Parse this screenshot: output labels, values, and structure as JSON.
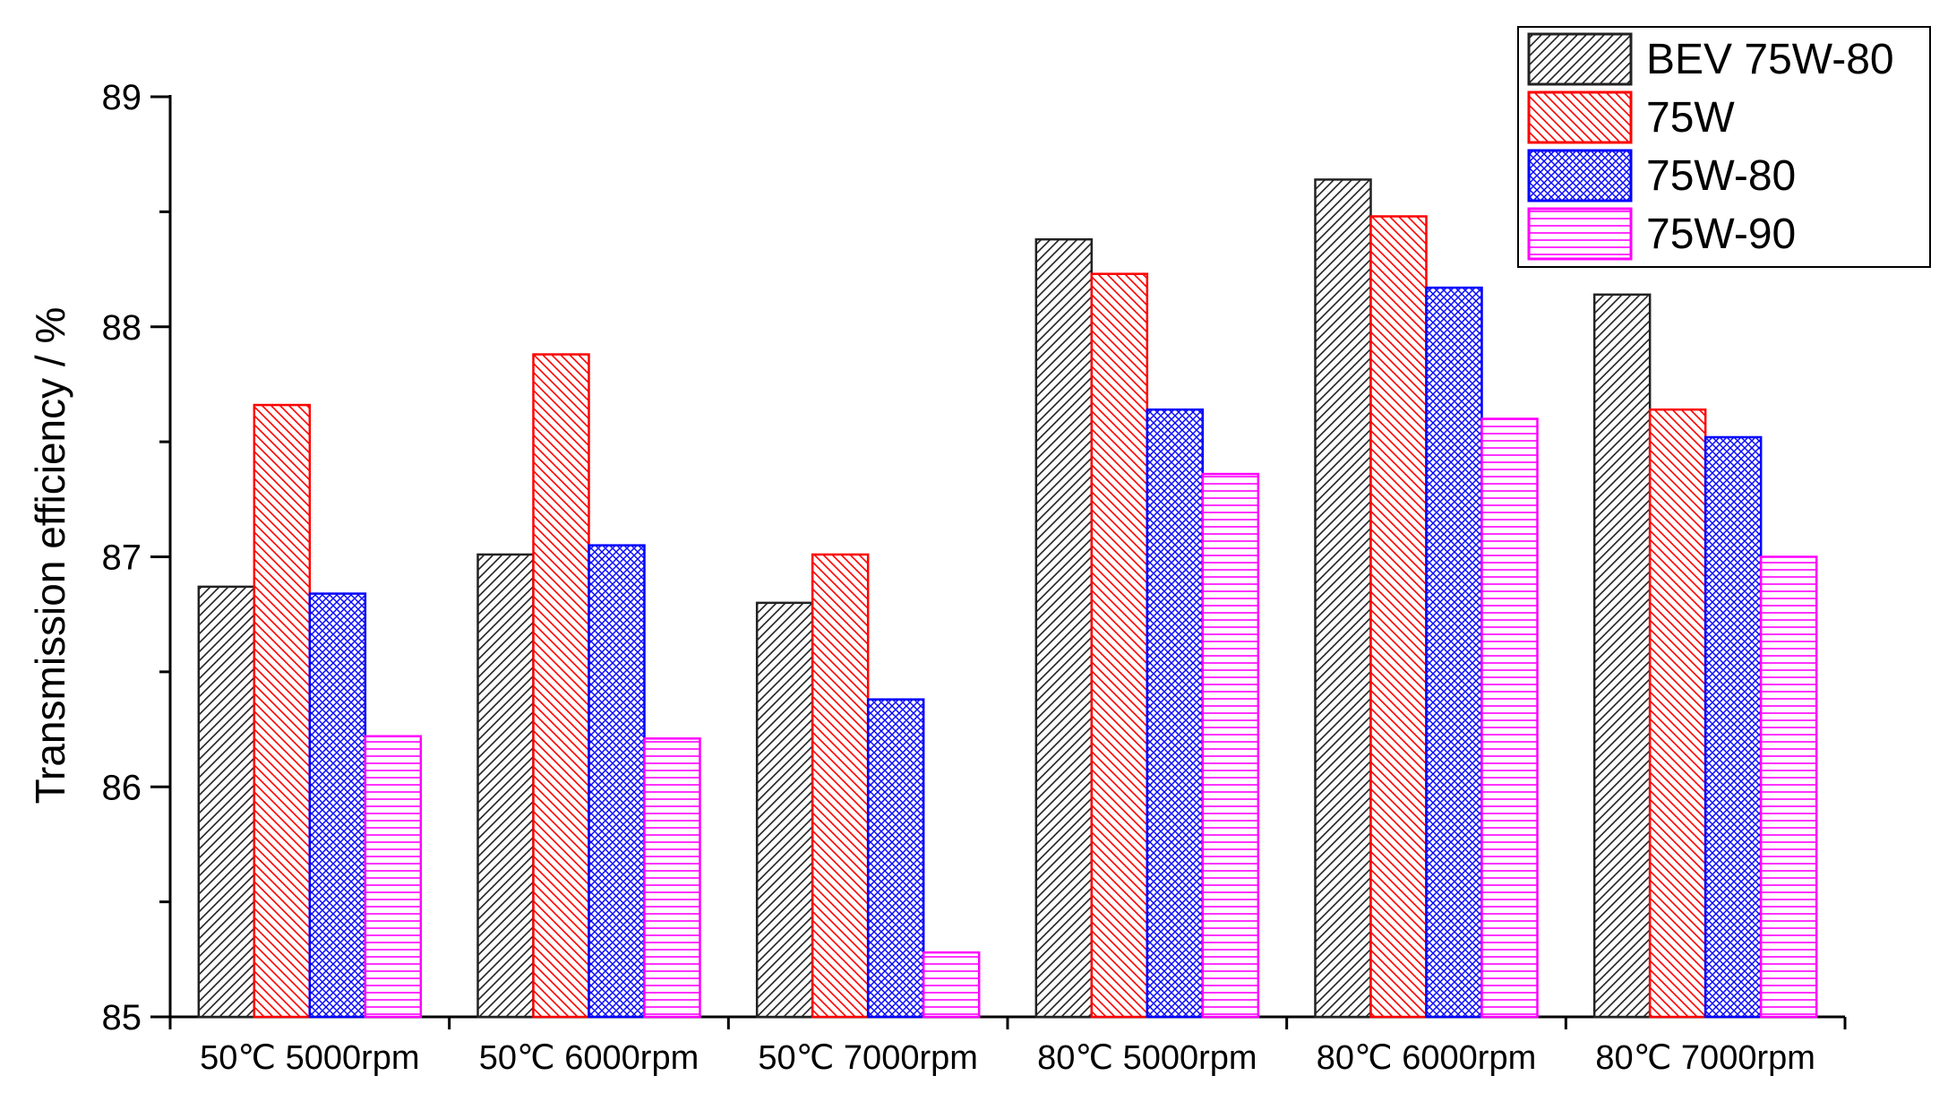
{
  "chart_data": {
    "type": "bar",
    "title": "",
    "xlabel": "",
    "ylabel": "Transmission efficiency / %",
    "ylim": [
      85,
      89
    ],
    "yticks": [
      85,
      86,
      87,
      88,
      89
    ],
    "ytick_labels": [
      "85",
      "86",
      "87",
      "88",
      "89"
    ],
    "categories": [
      "50℃  5000rpm",
      "50℃  6000rpm",
      "50℃  7000rpm",
      "80℃  5000rpm",
      "80℃  6000rpm",
      "80℃  7000rpm"
    ],
    "series": [
      {
        "name": "BEV 75W-80",
        "values": [
          86.87,
          87.01,
          86.8,
          88.38,
          88.64,
          88.14
        ]
      },
      {
        "name": "75W",
        "values": [
          87.66,
          87.88,
          87.01,
          88.23,
          88.48,
          87.64
        ]
      },
      {
        "name": "75W-80",
        "values": [
          86.84,
          87.05,
          86.38,
          87.64,
          88.17,
          87.52
        ]
      },
      {
        "name": "75W-90",
        "values": [
          86.22,
          86.21,
          85.28,
          87.36,
          87.6,
          87.0
        ]
      }
    ],
    "legend": {
      "position": "top-right"
    },
    "grid": false
  },
  "style": {
    "series_colors": [
      "#222222",
      "#ff0000",
      "#0000ff",
      "#ff00ff"
    ],
    "series_patterns": [
      "diagonal-up",
      "diagonal-down",
      "crosshatch",
      "horizontal"
    ]
  }
}
